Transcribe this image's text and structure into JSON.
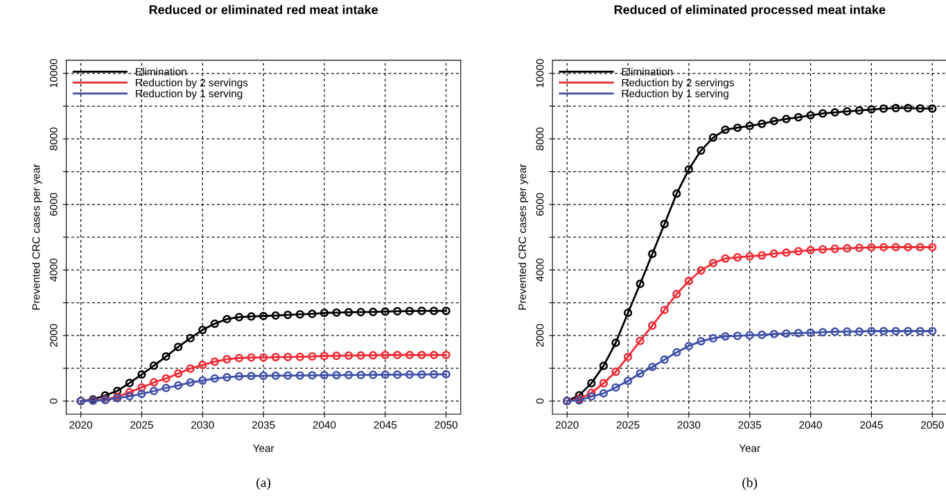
{
  "chart_data": [
    {
      "type": "line",
      "title": "Reduced or eliminated red meat intake",
      "xlabel": "Year",
      "ylabel": "Prevented CRC cases per year",
      "annotations": [
        "(a)"
      ],
      "x": [
        2020,
        2021,
        2022,
        2023,
        2024,
        2025,
        2026,
        2027,
        2028,
        2029,
        2030,
        2031,
        2032,
        2033,
        2034,
        2035,
        2036,
        2037,
        2038,
        2039,
        2040,
        2041,
        2042,
        2043,
        2044,
        2045,
        2046,
        2047,
        2048,
        2049,
        2050
      ],
      "series": [
        {
          "name": "Elimination",
          "color": "#000000",
          "values": [
            0,
            50,
            170,
            310,
            550,
            810,
            1080,
            1360,
            1650,
            1920,
            2170,
            2360,
            2500,
            2560,
            2580,
            2595,
            2610,
            2630,
            2645,
            2660,
            2690,
            2700,
            2710,
            2715,
            2720,
            2730,
            2740,
            2745,
            2750,
            2750,
            2750
          ]
        },
        {
          "name": "Reduction by 2 servings",
          "color": "#ee2a35",
          "values": [
            0,
            20,
            50,
            130,
            270,
            412,
            570,
            690,
            840,
            990,
            1100,
            1200,
            1275,
            1310,
            1330,
            1330,
            1340,
            1345,
            1350,
            1360,
            1375,
            1380,
            1385,
            1390,
            1395,
            1405,
            1405,
            1405,
            1405,
            1405,
            1405
          ]
        },
        {
          "name": "Reduction by 1 serving",
          "color": "#3f4fa8",
          "values": [
            0,
            10,
            30,
            90,
            145,
            220,
            305,
            400,
            475,
            565,
            626,
            690,
            725,
            755,
            765,
            772,
            775,
            780,
            780,
            785,
            790,
            790,
            795,
            795,
            800,
            805,
            805,
            810,
            810,
            815,
            817
          ]
        }
      ],
      "xlim": [
        2018.8,
        2051.2
      ],
      "xticks": [
        2020,
        2025,
        2030,
        2035,
        2040,
        2045,
        2050
      ],
      "ylim": [
        -400,
        10400
      ],
      "yticks": [
        0,
        {
          "value": 1000,
          "label": null
        },
        2000,
        {
          "value": 3000,
          "label": null
        },
        4000,
        {
          "value": 5000,
          "label": null
        },
        6000,
        {
          "value": 7000,
          "label": null
        },
        8000,
        {
          "value": 9000,
          "label": null
        },
        10000
      ],
      "grid": true,
      "legend": "top left",
      "marker": "circle",
      "line_style": "solid"
    },
    {
      "type": "line",
      "title": "Reduced of eliminated processed meat intake",
      "xlabel": "Year",
      "ylabel": "Prevented CRC cases per year",
      "annotations": [
        "(b)"
      ],
      "x": [
        2020,
        2021,
        2022,
        2023,
        2024,
        2025,
        2026,
        2027,
        2028,
        2029,
        2030,
        2031,
        2032,
        2033,
        2034,
        2035,
        2036,
        2037,
        2038,
        2039,
        2040,
        2041,
        2042,
        2043,
        2044,
        2045,
        2046,
        2047,
        2048,
        2049,
        2050
      ],
      "series": [
        {
          "name": "Elimination",
          "color": "#000000",
          "values": [
            0,
            175,
            545,
            1075,
            1780,
            2690,
            3575,
            4490,
            5400,
            6330,
            7070,
            7645,
            8040,
            8280,
            8340,
            8395,
            8460,
            8545,
            8605,
            8660,
            8720,
            8775,
            8810,
            8840,
            8865,
            8900,
            8925,
            8940,
            8940,
            8930,
            8925
          ]
        },
        {
          "name": "Reduction by 2 servings",
          "color": "#ee2a35",
          "values": [
            0,
            60,
            250,
            545,
            895,
            1350,
            1835,
            2300,
            2780,
            3265,
            3665,
            3985,
            4210,
            4350,
            4385,
            4415,
            4445,
            4500,
            4530,
            4570,
            4605,
            4630,
            4645,
            4660,
            4675,
            4690,
            4695,
            4695,
            4695,
            4695,
            4695
          ]
        },
        {
          "name": "Reduction by 1 serving",
          "color": "#3f4fa8",
          "values": [
            0,
            20,
            140,
            235,
            415,
            615,
            840,
            1040,
            1265,
            1485,
            1680,
            1825,
            1915,
            1975,
            1990,
            2005,
            2020,
            2045,
            2060,
            2075,
            2085,
            2100,
            2115,
            2120,
            2120,
            2135,
            2135,
            2135,
            2135,
            2135,
            2135
          ]
        }
      ],
      "xlim": [
        2018.8,
        2051.2
      ],
      "xticks": [
        2020,
        2025,
        2030,
        2035,
        2040,
        2045,
        2050
      ],
      "ylim": [
        -400,
        10400
      ],
      "yticks": [
        0,
        {
          "value": 1000,
          "label": null
        },
        2000,
        {
          "value": 3000,
          "label": null
        },
        4000,
        {
          "value": 5000,
          "label": null
        },
        6000,
        {
          "value": 7000,
          "label": null
        },
        8000,
        {
          "value": 9000,
          "label": null
        },
        10000
      ],
      "grid": true,
      "legend": "top left",
      "marker": "circle",
      "line_style": "solid"
    }
  ]
}
